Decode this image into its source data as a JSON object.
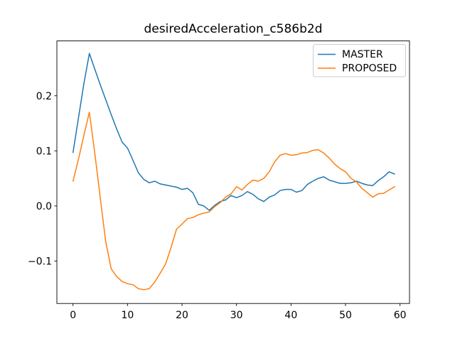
{
  "chart_data": {
    "type": "line",
    "title": "desiredAcceleration_c586b2d",
    "xlabel": "",
    "ylabel": "",
    "grid": false,
    "legend_position": "upper right",
    "xlim": [
      -2.96,
      61.74
    ],
    "ylim": [
      -0.177,
      0.2995
    ],
    "xticks": {
      "values": [
        0,
        10,
        20,
        30,
        40,
        50,
        60
      ],
      "labels": [
        "0",
        "10",
        "20",
        "30",
        "40",
        "50",
        "60"
      ]
    },
    "yticks": {
      "values": [
        -0.1,
        0.0,
        0.1,
        0.2
      ],
      "labels": [
        "−0.1",
        "0.0",
        "0.1",
        "0.2"
      ]
    },
    "x": [
      0,
      1,
      2,
      3,
      4,
      5,
      6,
      7,
      8,
      9,
      10,
      11,
      12,
      13,
      14,
      15,
      16,
      17,
      18,
      19,
      20,
      21,
      22,
      23,
      24,
      25,
      26,
      27,
      28,
      29,
      30,
      31,
      32,
      33,
      34,
      35,
      36,
      37,
      38,
      39,
      40,
      41,
      42,
      43,
      44,
      45,
      46,
      47,
      48,
      49,
      50,
      51,
      52,
      53,
      54,
      55,
      56,
      57,
      58,
      59
    ],
    "series": [
      {
        "name": "MASTER",
        "color": "#1f77b4",
        "values": [
          0.097,
          0.16,
          0.222,
          0.277,
          0.248,
          0.22,
          0.193,
          0.166,
          0.14,
          0.116,
          0.105,
          0.083,
          0.06,
          0.048,
          0.042,
          0.045,
          0.04,
          0.038,
          0.036,
          0.034,
          0.03,
          0.032,
          0.024,
          0.003,
          0.0,
          -0.008,
          0.001,
          0.008,
          0.011,
          0.019,
          0.015,
          0.019,
          0.026,
          0.021,
          0.013,
          0.008,
          0.016,
          0.02,
          0.028,
          0.03,
          0.03,
          0.025,
          0.028,
          0.039,
          0.045,
          0.05,
          0.053,
          0.047,
          0.044,
          0.041,
          0.041,
          0.042,
          0.045,
          0.041,
          0.038,
          0.037,
          0.046,
          0.053,
          0.062,
          0.058
        ]
      },
      {
        "name": "PROPOSED",
        "color": "#ff7f0e",
        "values": [
          0.045,
          0.085,
          0.128,
          0.17,
          0.095,
          0.015,
          -0.065,
          -0.114,
          -0.128,
          -0.137,
          -0.141,
          -0.143,
          -0.15,
          -0.152,
          -0.15,
          -0.138,
          -0.122,
          -0.105,
          -0.075,
          -0.042,
          -0.033,
          -0.023,
          -0.021,
          -0.016,
          -0.013,
          -0.011,
          -0.001,
          0.006,
          0.016,
          0.022,
          0.035,
          0.029,
          0.039,
          0.047,
          0.045,
          0.05,
          0.062,
          0.08,
          0.092,
          0.095,
          0.092,
          0.093,
          0.096,
          0.097,
          0.101,
          0.102,
          0.096,
          0.087,
          0.076,
          0.068,
          0.062,
          0.05,
          0.044,
          0.032,
          0.024,
          0.016,
          0.022,
          0.023,
          0.029,
          0.035
        ]
      }
    ]
  }
}
